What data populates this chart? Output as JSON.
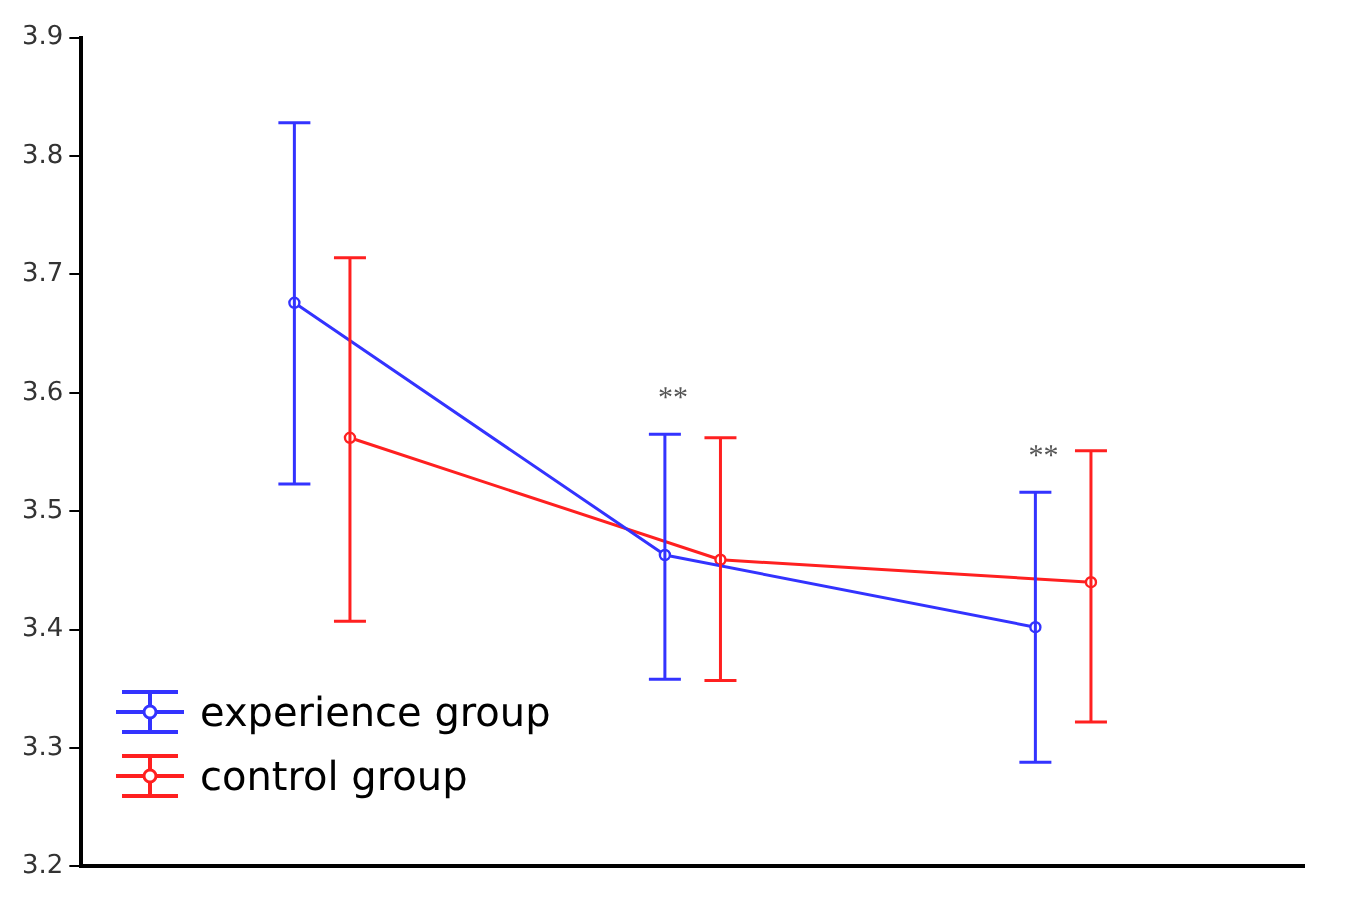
{
  "chart_data": {
    "type": "line",
    "categories": [
      null,
      null,
      null
    ],
    "series": [
      {
        "name": "experience group",
        "color": "#3333ff",
        "values": [
          3.676,
          3.463,
          3.402
        ],
        "errors": [
          [
            3.523,
            3.828
          ],
          [
            3.358,
            3.565
          ],
          [
            3.288,
            3.516
          ]
        ]
      },
      {
        "name": "control group",
        "color": "#ff2020",
        "values": [
          3.562,
          3.459,
          3.44
        ],
        "errors": [
          [
            3.407,
            3.714
          ],
          [
            3.357,
            3.562
          ],
          [
            3.322,
            3.551
          ]
        ]
      }
    ],
    "annotations": [
      "**",
      "**"
    ],
    "ylim": [
      3.2,
      3.9
    ],
    "yticks": [
      3.2,
      3.3,
      3.4,
      3.5,
      3.6,
      3.7,
      3.8,
      3.9
    ],
    "grid": false,
    "legend": "bottom left",
    "marker": "circle",
    "line_style": "solid",
    "tick_labels": "y"
  }
}
